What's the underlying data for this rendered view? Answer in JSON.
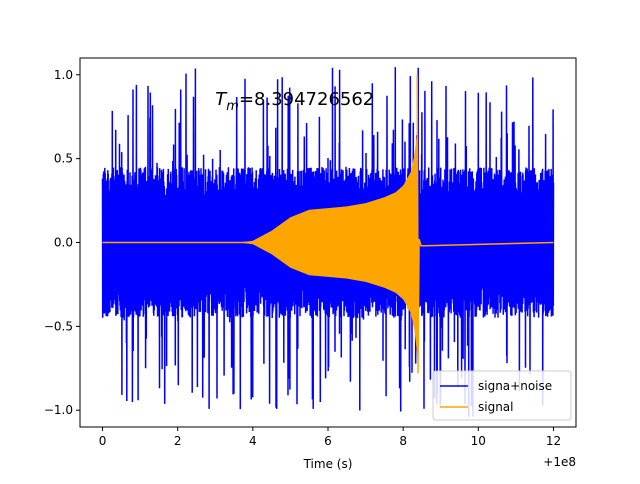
{
  "chart_data": {
    "type": "line",
    "title": "",
    "xlabel": "Time (s)",
    "ylabel": "",
    "x_offset_label": "+1e8",
    "xlim": [
      -0.6,
      12.6
    ],
    "ylim": [
      -1.1,
      1.1
    ],
    "xticks": [
      0,
      2,
      4,
      6,
      8,
      10,
      12
    ],
    "xtick_labels": [
      "0",
      "2",
      "4",
      "6",
      "8",
      "10",
      "12"
    ],
    "yticks": [
      1.0,
      0.5,
      0.0,
      -0.5,
      -1.0
    ],
    "ytick_labels": [
      "1.0",
      "0.5",
      "0.0",
      "−0.5",
      "−1.0"
    ],
    "annotation": {
      "prefix": "T",
      "subscript": "m",
      "value_text": "=8.394726562",
      "x": 3.0,
      "y": 0.82
    },
    "legend": {
      "placement": "lower-right",
      "entries": [
        "signa+noise",
        "signal"
      ]
    },
    "series": [
      {
        "name": "signa+noise",
        "color": "#0000ff",
        "x_range": [
          0.0,
          12.0
        ],
        "description_values": {
          "typical_envelope": [
            -0.45,
            0.45
          ],
          "max": 1.0,
          "min": -1.05
        }
      },
      {
        "name": "signal",
        "color": "#ffa500",
        "chirp_envelope": {
          "x": [
            0.0,
            3.6,
            4.0,
            4.5,
            5.0,
            5.5,
            6.0,
            6.5,
            7.0,
            7.5,
            7.8,
            8.0,
            8.2,
            8.3,
            8.35,
            8.39
          ],
          "amp": [
            0.0,
            0.0,
            0.01,
            0.07,
            0.15,
            0.195,
            0.205,
            0.215,
            0.235,
            0.27,
            0.3,
            0.34,
            0.42,
            0.52,
            0.62,
            0.72
          ]
        },
        "merger_time": 8.3947,
        "peak": 1.0,
        "trough": -0.78
      }
    ]
  }
}
